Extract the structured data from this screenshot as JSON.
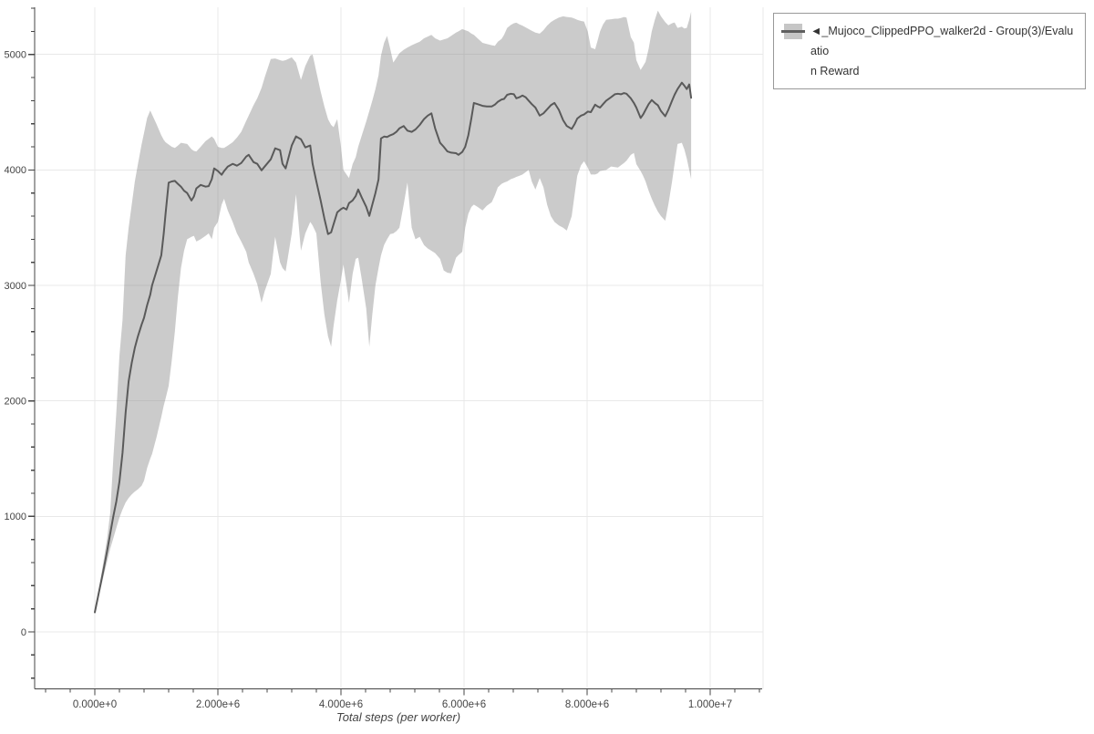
{
  "legend": {
    "label": "◄_Mujoco_ClippedPPO_walker2d - Group(3)/Evaluation Reward",
    "label_lines": [
      "◄_Mujoco_ClippedPPO_walker2d - Group(3)/Evaluatio",
      "n Reward"
    ]
  },
  "chart_data": {
    "type": "line",
    "title": "",
    "xlabel": "Total steps (per worker)",
    "ylabel": "",
    "grid": true,
    "legend_position": "outside-top-right",
    "x_scale_note": "x values stored in millions of steps",
    "xlim_e6": [
      -0.98,
      10.85
    ],
    "ylim": [
      -495,
      5415
    ],
    "x_ticks": {
      "values_e6": [
        0,
        2,
        4,
        6,
        8,
        10
      ],
      "labels": [
        "0.000e+0",
        "2.000e+6",
        "4.000e+6",
        "6.000e+6",
        "8.000e+6",
        "1.000e+7"
      ],
      "minor_step_e6": 0.4
    },
    "y_ticks": {
      "values": [
        0,
        1000,
        2000,
        3000,
        4000,
        5000
      ],
      "labels": [
        "0",
        "1000",
        "2000",
        "3000",
        "4000",
        "5000"
      ],
      "minor_step": 200
    },
    "colors": {
      "band": "#8c8c8c",
      "band_opacity": 0.45,
      "line": "#5a5a5a",
      "grid": "#e8e8e8",
      "axis": "#444444",
      "text": "#444444",
      "legend_border": "#999999"
    },
    "series": [
      {
        "name": "◄_Mujoco_ClippedPPO_walker2d - Group(3)/Evaluation Reward",
        "points_format": [
          "x_millions",
          "mean",
          "lower",
          "upper"
        ],
        "points": [
          [
            0.0,
            170,
            160,
            185
          ],
          [
            0.05,
            300,
            280,
            330
          ],
          [
            0.1,
            430,
            390,
            480
          ],
          [
            0.15,
            560,
            500,
            640
          ],
          [
            0.2,
            700,
            610,
            810
          ],
          [
            0.25,
            850,
            720,
            1030
          ],
          [
            0.3,
            1000,
            810,
            1500
          ],
          [
            0.35,
            1130,
            900,
            1900
          ],
          [
            0.4,
            1300,
            990,
            2390
          ],
          [
            0.45,
            1550,
            1060,
            2700
          ],
          [
            0.5,
            1900,
            1120,
            3260
          ],
          [
            0.55,
            2170,
            1160,
            3500
          ],
          [
            0.6,
            2330,
            1190,
            3700
          ],
          [
            0.65,
            2460,
            1215,
            3900
          ],
          [
            0.7,
            2560,
            1235,
            4050
          ],
          [
            0.76,
            2660,
            1265,
            4220
          ],
          [
            0.8,
            2720,
            1310,
            4320
          ],
          [
            0.85,
            2830,
            1420,
            4450
          ],
          [
            0.9,
            2920,
            1500,
            4515
          ],
          [
            0.93,
            3000,
            1540,
            4480
          ],
          [
            1.0,
            3120,
            1680,
            4400
          ],
          [
            1.08,
            3260,
            1860,
            4300
          ],
          [
            1.12,
            3450,
            1960,
            4260
          ],
          [
            1.15,
            3620,
            2020,
            4240
          ],
          [
            1.2,
            3890,
            2130,
            4220
          ],
          [
            1.25,
            3900,
            2350,
            4200
          ],
          [
            1.3,
            3905,
            2600,
            4190
          ],
          [
            1.35,
            3880,
            2900,
            4210
          ],
          [
            1.4,
            3855,
            3150,
            4235
          ],
          [
            1.45,
            3820,
            3300,
            4230
          ],
          [
            1.5,
            3800,
            3400,
            4225
          ],
          [
            1.57,
            3735,
            3420,
            4180
          ],
          [
            1.61,
            3770,
            3430,
            4165
          ],
          [
            1.65,
            3840,
            3380,
            4160
          ],
          [
            1.72,
            3870,
            3400,
            4200
          ],
          [
            1.8,
            3855,
            3430,
            4250
          ],
          [
            1.85,
            3860,
            3450,
            4270
          ],
          [
            1.9,
            3920,
            3400,
            4290
          ],
          [
            1.94,
            4013,
            3500,
            4270
          ],
          [
            2.0,
            3990,
            3550,
            4200
          ],
          [
            2.06,
            3958,
            3700,
            4190
          ],
          [
            2.1,
            3990,
            3750,
            4190
          ],
          [
            2.16,
            4029,
            3650,
            4210
          ],
          [
            2.24,
            4053,
            3550,
            4240
          ],
          [
            2.31,
            4037,
            3450,
            4280
          ],
          [
            2.38,
            4060,
            3380,
            4330
          ],
          [
            2.46,
            4116,
            3290,
            4425
          ],
          [
            2.5,
            4131,
            3200,
            4470
          ],
          [
            2.58,
            4068,
            3100,
            4560
          ],
          [
            2.64,
            4053,
            3010,
            4620
          ],
          [
            2.71,
            3997,
            2850,
            4710
          ],
          [
            2.76,
            4029,
            2950,
            4800
          ],
          [
            2.86,
            4092,
            3100,
            4960
          ],
          [
            2.93,
            4187,
            3420,
            4965
          ],
          [
            3.01,
            4171,
            3200,
            4950
          ],
          [
            3.05,
            4053,
            3150,
            4945
          ],
          [
            3.1,
            4013,
            3120,
            4950
          ],
          [
            3.2,
            4211,
            3450,
            4975
          ],
          [
            3.27,
            4290,
            3790,
            4930
          ],
          [
            3.35,
            4266,
            3300,
            4780
          ],
          [
            3.42,
            4195,
            3450,
            4900
          ],
          [
            3.5,
            4211,
            3550,
            4990
          ],
          [
            3.54,
            4053,
            3520,
            5000
          ],
          [
            3.6,
            3900,
            3450,
            4850
          ],
          [
            3.67,
            3736,
            3030,
            4680
          ],
          [
            3.73,
            3580,
            2750,
            4550
          ],
          [
            3.79,
            3445,
            2560,
            4440
          ],
          [
            3.84,
            3460,
            2470,
            4390
          ],
          [
            3.88,
            3530,
            2650,
            4370
          ],
          [
            3.94,
            3633,
            2870,
            4440
          ],
          [
            4.0,
            3660,
            3050,
            4200
          ],
          [
            4.04,
            3673,
            3180,
            4000
          ],
          [
            4.09,
            3657,
            3000,
            3960
          ],
          [
            4.13,
            3712,
            2850,
            3930
          ],
          [
            4.19,
            3736,
            3100,
            4050
          ],
          [
            4.24,
            3775,
            3230,
            4110
          ],
          [
            4.28,
            3831,
            3240,
            4200
          ],
          [
            4.34,
            3760,
            3050,
            4300
          ],
          [
            4.41,
            3681,
            2800,
            4420
          ],
          [
            4.46,
            3602,
            2470,
            4510
          ],
          [
            4.51,
            3700,
            2750,
            4600
          ],
          [
            4.56,
            3800,
            3000,
            4700
          ],
          [
            4.61,
            3918,
            3150,
            4820
          ],
          [
            4.65,
            4273,
            3260,
            4990
          ],
          [
            4.7,
            4289,
            3350,
            5100
          ],
          [
            4.75,
            4285,
            3400,
            5160
          ],
          [
            4.8,
            4300,
            3444,
            5050
          ],
          [
            4.85,
            4310,
            3450,
            4930
          ],
          [
            4.9,
            4330,
            3470,
            4970
          ],
          [
            4.95,
            4360,
            3500,
            5010
          ],
          [
            5.02,
            4380,
            3700,
            5040
          ],
          [
            5.08,
            4340,
            3890,
            5060
          ],
          [
            5.15,
            4330,
            3500,
            5080
          ],
          [
            5.21,
            4350,
            3400,
            5095
          ],
          [
            5.28,
            4390,
            3420,
            5110
          ],
          [
            5.35,
            4440,
            3350,
            5140
          ],
          [
            5.41,
            4470,
            3320,
            5155
          ],
          [
            5.47,
            4490,
            3300,
            5170
          ],
          [
            5.53,
            4360,
            3280,
            5140
          ],
          [
            5.61,
            4235,
            3230,
            5120
          ],
          [
            5.67,
            4200,
            3130,
            5130
          ],
          [
            5.73,
            4160,
            3110,
            5140
          ],
          [
            5.79,
            4150,
            3105,
            5160
          ],
          [
            5.87,
            4145,
            3240,
            5190
          ],
          [
            5.91,
            4131,
            3262,
            5200
          ],
          [
            5.97,
            4155,
            3290,
            5220
          ],
          [
            6.02,
            4200,
            3500,
            5210
          ],
          [
            6.07,
            4300,
            3620,
            5200
          ],
          [
            6.12,
            4450,
            3680,
            5180
          ],
          [
            6.16,
            4580,
            3700,
            5170
          ],
          [
            6.22,
            4570,
            3680,
            5140
          ],
          [
            6.3,
            4555,
            3650,
            5100
          ],
          [
            6.37,
            4550,
            3690,
            5090
          ],
          [
            6.45,
            4550,
            3720,
            5080
          ],
          [
            6.5,
            4565,
            3780,
            5075
          ],
          [
            6.55,
            4590,
            3850,
            5110
          ],
          [
            6.61,
            4610,
            3880,
            5135
          ],
          [
            6.65,
            4615,
            3890,
            5170
          ],
          [
            6.7,
            4650,
            3900,
            5230
          ],
          [
            6.76,
            4660,
            3920,
            5255
          ],
          [
            6.81,
            4655,
            3930,
            5270
          ],
          [
            6.85,
            4620,
            3940,
            5275
          ],
          [
            6.9,
            4630,
            3950,
            5260
          ],
          [
            6.95,
            4645,
            3960,
            5250
          ],
          [
            7.0,
            4630,
            3980,
            5235
          ],
          [
            7.05,
            4600,
            4000,
            5220
          ],
          [
            7.1,
            4570,
            3900,
            5205
          ],
          [
            7.16,
            4540,
            3830,
            5190
          ],
          [
            7.23,
            4470,
            3930,
            5180
          ],
          [
            7.29,
            4490,
            3850,
            5210
          ],
          [
            7.35,
            4525,
            3700,
            5250
          ],
          [
            7.41,
            4560,
            3600,
            5280
          ],
          [
            7.47,
            4580,
            3550,
            5300
          ],
          [
            7.54,
            4520,
            3520,
            5320
          ],
          [
            7.61,
            4430,
            3500,
            5330
          ],
          [
            7.67,
            4380,
            3475,
            5325
          ],
          [
            7.75,
            4355,
            3600,
            5320
          ],
          [
            7.8,
            4400,
            3800,
            5310
          ],
          [
            7.84,
            4445,
            3950,
            5300
          ],
          [
            7.9,
            4470,
            4040,
            5290
          ],
          [
            7.95,
            4480,
            4075,
            5285
          ],
          [
            8.01,
            4505,
            4020,
            5200
          ],
          [
            8.06,
            4500,
            3960,
            5060
          ],
          [
            8.13,
            4565,
            3960,
            5045
          ],
          [
            8.17,
            4550,
            3970,
            5120
          ],
          [
            8.21,
            4540,
            3990,
            5200
          ],
          [
            8.26,
            4570,
            3995,
            5260
          ],
          [
            8.31,
            4600,
            4000,
            5300
          ],
          [
            8.39,
            4630,
            4030,
            5305
          ],
          [
            8.45,
            4655,
            4025,
            5310
          ],
          [
            8.5,
            4660,
            4020,
            5310
          ],
          [
            8.55,
            4655,
            4040,
            5315
          ],
          [
            8.6,
            4665,
            4060,
            5325
          ],
          [
            8.64,
            4660,
            4080,
            5320
          ],
          [
            8.71,
            4620,
            4130,
            5150
          ],
          [
            8.76,
            4580,
            4147,
            5102
          ],
          [
            8.8,
            4540,
            4050,
            4950
          ],
          [
            8.87,
            4450,
            3990,
            4866
          ],
          [
            8.91,
            4480,
            3950,
            4900
          ],
          [
            8.95,
            4520,
            3900,
            4935
          ],
          [
            9.0,
            4570,
            3820,
            5050
          ],
          [
            9.05,
            4605,
            3750,
            5200
          ],
          [
            9.1,
            4580,
            3690,
            5300
          ],
          [
            9.15,
            4560,
            3640,
            5380
          ],
          [
            9.2,
            4510,
            3600,
            5330
          ],
          [
            9.27,
            4465,
            3560,
            5280
          ],
          [
            9.32,
            4520,
            3700,
            5253
          ],
          [
            9.38,
            4600,
            3900,
            5270
          ],
          [
            9.42,
            4650,
            4050,
            5277
          ],
          [
            9.47,
            4700,
            4225,
            5230
          ],
          [
            9.54,
            4755,
            4235,
            5240
          ],
          [
            9.58,
            4730,
            4180,
            5225
          ],
          [
            9.62,
            4700,
            4100,
            5230
          ],
          [
            9.66,
            4740,
            4000,
            5300
          ],
          [
            9.69,
            4625,
            3920,
            5370
          ]
        ]
      }
    ]
  }
}
